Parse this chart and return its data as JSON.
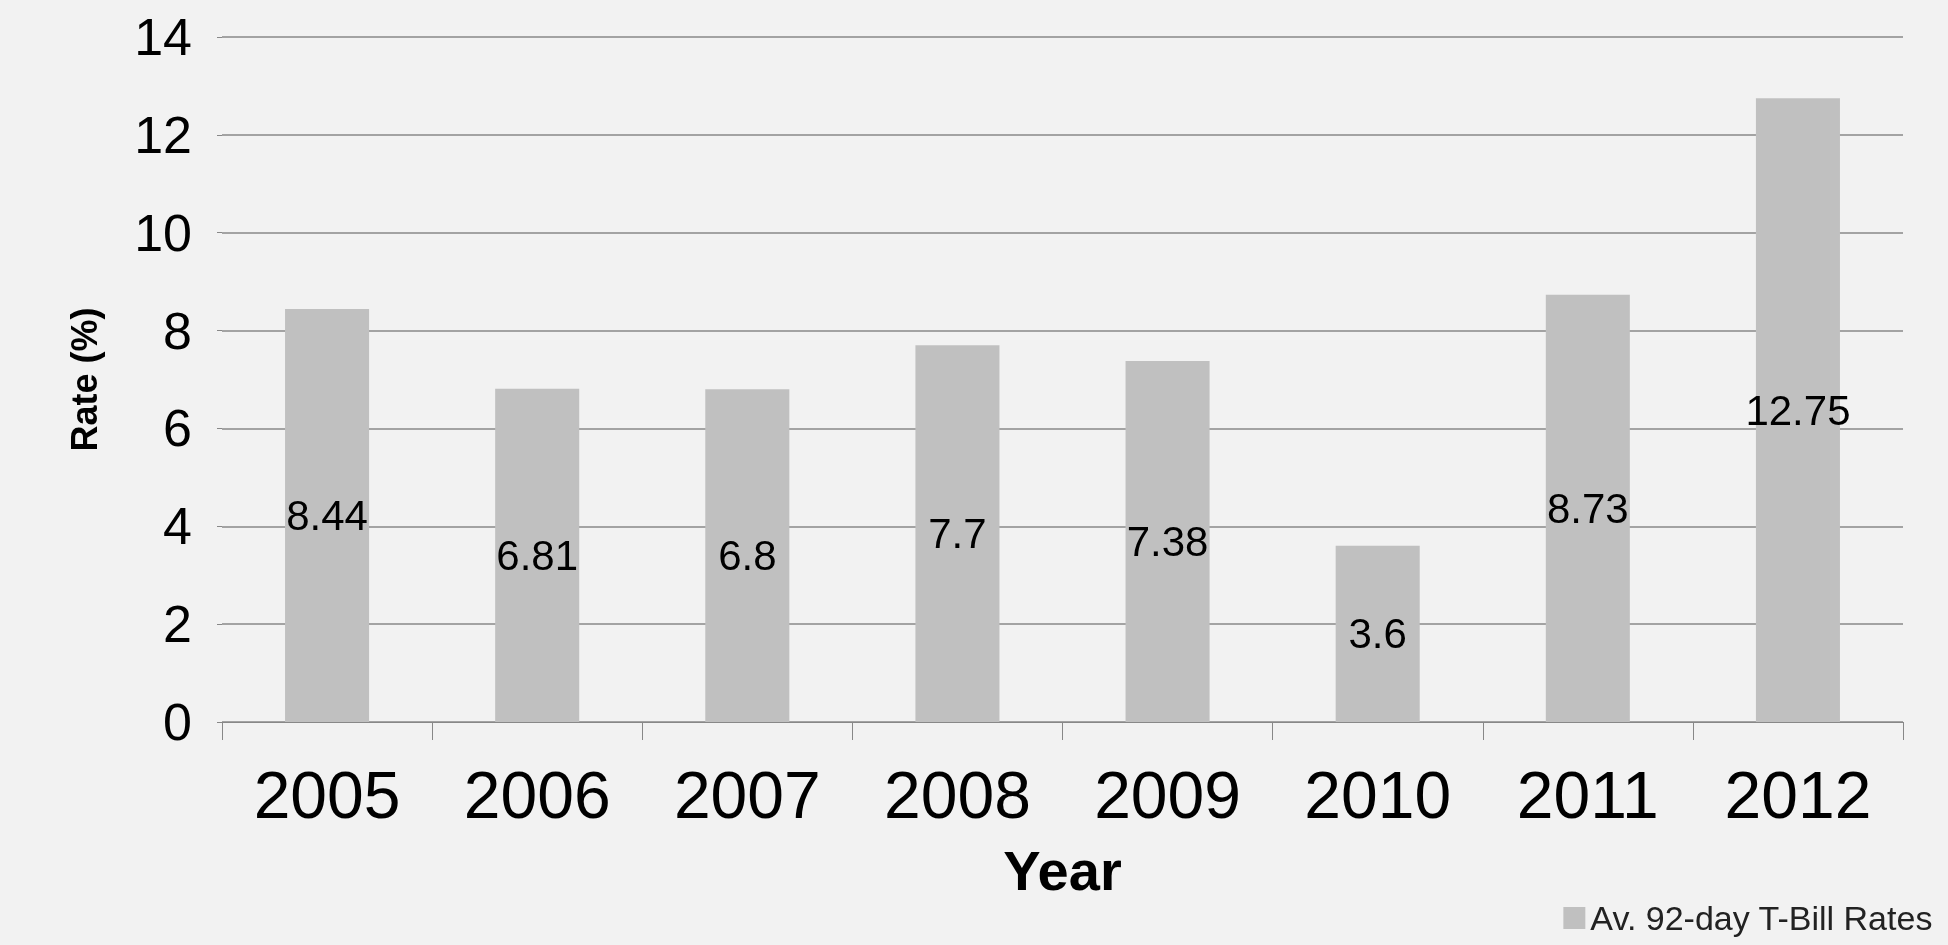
{
  "chart_data": {
    "type": "bar",
    "xlabel": "Year",
    "ylabel": "Rate (%)",
    "categories": [
      "2005",
      "2006",
      "2007",
      "2008",
      "2009",
      "2010",
      "2011",
      "2012"
    ],
    "series": [
      {
        "name": "Av. 92-day T-Bill Rates",
        "color": "#c0c0c0",
        "values": [
          8.44,
          6.81,
          6.8,
          7.7,
          7.38,
          3.6,
          8.73,
          12.75
        ]
      }
    ],
    "ylim": [
      0,
      14
    ],
    "yticks": [
      0,
      2,
      4,
      6,
      8,
      10,
      12,
      14
    ],
    "grid": "y",
    "legend": "bottom right",
    "data_labels": true
  }
}
